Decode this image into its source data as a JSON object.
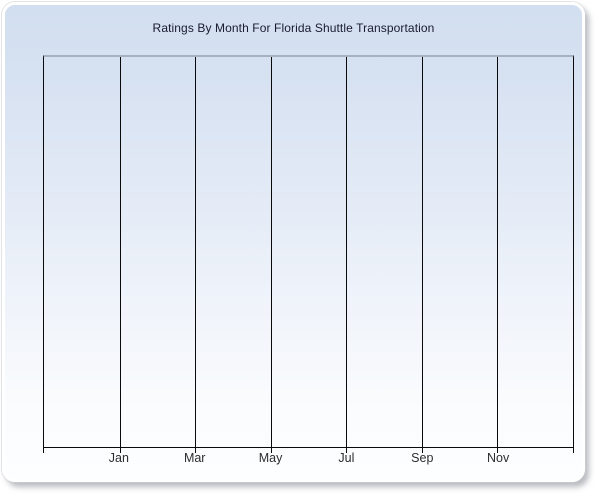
{
  "header": {
    "title": "Ratings By Month For Florida Shuttle Transportation",
    "title_color": "#1a1a30"
  },
  "chart_data": {
    "type": "line",
    "title": "Ratings By Month For Florida Shuttle Transportation",
    "xlabel": "",
    "ylabel": "",
    "x_tick_labels": [
      "Jan",
      "Mar",
      "May",
      "Jul",
      "Sep",
      "Nov"
    ],
    "x_axis_unit": "month",
    "x_gridline_count": 8,
    "months_per_gridline_interval": 2,
    "y_tick_labels": [],
    "series": [],
    "note": "Plot area is empty - no data points, bars or lines are rendered",
    "grid": "vertical gridlines only",
    "legend": "none",
    "colors": {
      "gridline": "#0a0a0a",
      "plot_top_border": "#a8b0bf",
      "axis_line": "#0a0a0a",
      "tick_label": "#2d2d2d",
      "panel_gradient_top": "#d2dff0",
      "panel_gradient_bottom": "#fdfeff",
      "panel_border": "#ffffff"
    }
  }
}
